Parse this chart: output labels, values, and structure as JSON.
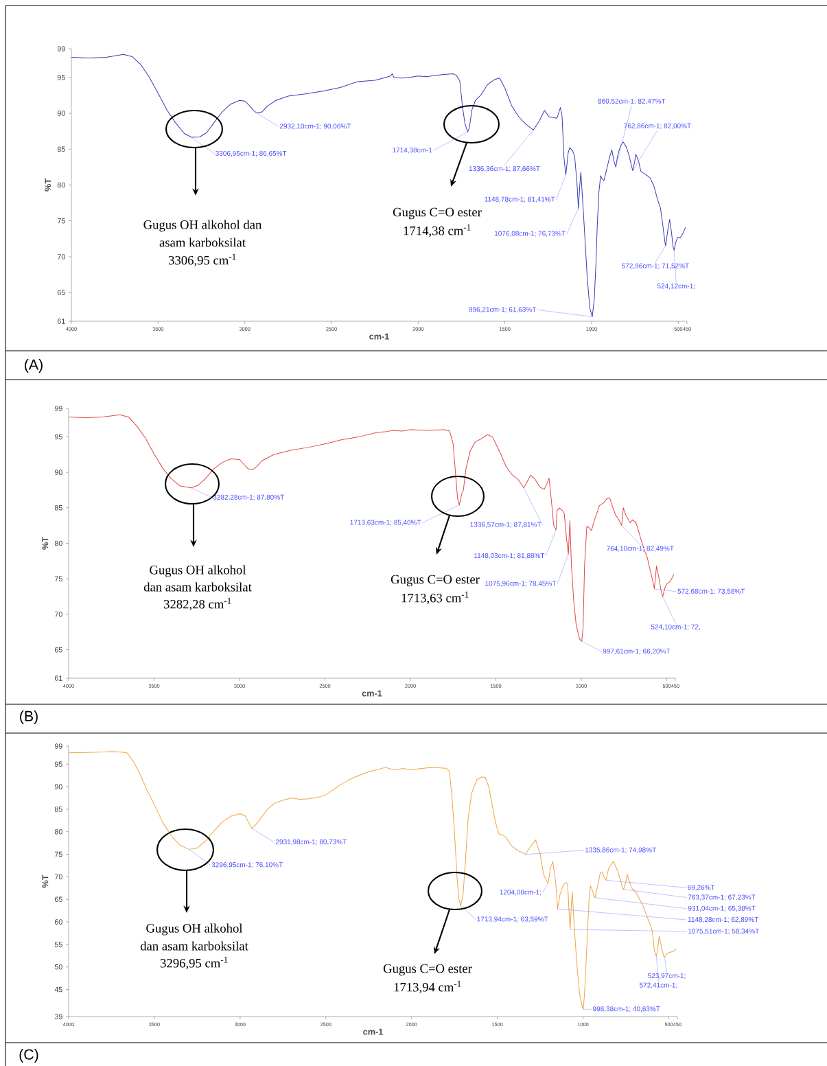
{
  "chart_data": [
    {
      "type": "line",
      "xlabel": "cm-1",
      "ylabel": "%T",
      "xlim": [
        4000,
        450
      ],
      "ylim": [
        61,
        99
      ],
      "xticks": [
        4000,
        3500,
        3000,
        2500,
        2000,
        1500,
        1000,
        500,
        450
      ],
      "yticks": [
        61,
        65,
        70,
        75,
        80,
        85,
        90,
        95,
        99
      ],
      "color": "#3c3cb4",
      "x": [
        4000,
        3900,
        3800,
        3700,
        3650,
        3600,
        3550,
        3500,
        3450,
        3400,
        3350,
        3306.95,
        3260,
        3220,
        3180,
        3130,
        3080,
        3030,
        3000,
        2970,
        2950,
        2932.1,
        2900,
        2870,
        2820,
        2750,
        2650,
        2550,
        2450,
        2350,
        2250,
        2200,
        2160,
        2150,
        2140,
        2100,
        2050,
        2000,
        1950,
        1900,
        1850,
        1800,
        1780,
        1760,
        1745,
        1730,
        1714.38,
        1705,
        1690,
        1670,
        1640,
        1600,
        1560,
        1530,
        1500,
        1460,
        1420,
        1380,
        1336.36,
        1300,
        1272,
        1245,
        1200,
        1180,
        1170,
        1160,
        1148.78,
        1135,
        1126,
        1110,
        1098,
        1085,
        1076.08,
        1068,
        1062,
        1052,
        1042,
        1025,
        1010,
        996.21,
        985,
        975,
        968,
        958,
        948,
        940,
        929,
        910,
        895,
        883,
        873,
        860.52,
        852,
        843,
        830,
        818,
        800,
        785,
        770,
        762.86,
        752,
        745,
        730,
        716,
        690,
        663,
        640,
        620,
        603,
        590,
        577,
        572.96,
        562,
        550,
        540,
        530,
        524.12,
        515,
        504,
        490,
        475,
        458
      ],
      "values": [
        97.8,
        97.7,
        97.8,
        98.2,
        97.9,
        96.8,
        95,
        92.8,
        90.5,
        88.7,
        87.2,
        86.65,
        86.7,
        87.3,
        88.6,
        90.2,
        91.3,
        91.8,
        91.7,
        91,
        90.4,
        90.06,
        90.2,
        91,
        91.8,
        92.4,
        92.7,
        93.1,
        93.6,
        94.4,
        94.6,
        94.9,
        95.2,
        95.5,
        95,
        94.9,
        95,
        95.2,
        95.1,
        95.3,
        95.4,
        95.5,
        95.3,
        94.5,
        91,
        88.5,
        87.4,
        88,
        90.5,
        91.8,
        92.5,
        94,
        94.7,
        94.9,
        93.5,
        91,
        89.5,
        88.5,
        87.66,
        89,
        90.4,
        89.5,
        89.3,
        90.8,
        89.5,
        84,
        81.41,
        84.5,
        85.2,
        84.8,
        84,
        80.5,
        76.73,
        80,
        81.8,
        78,
        74,
        67,
        62.8,
        61.63,
        64,
        69,
        74,
        79,
        81.3,
        80.9,
        80.6,
        82.5,
        84,
        84.9,
        83.5,
        82.47,
        83.8,
        84.7,
        85.6,
        86,
        85.3,
        84.2,
        82.7,
        82,
        83.2,
        84.3,
        83.4,
        81.9,
        81.5,
        81,
        79.8,
        78,
        76.8,
        74.5,
        72,
        71.52,
        73.5,
        75.2,
        73.5,
        71.4,
        70.9,
        72,
        72.7,
        72.6,
        73.2,
        74.1
      ],
      "annotations": [
        {
          "text": "3306,95cm-1; 86,65%T",
          "x": 3306.95,
          "y": 86.65
        },
        {
          "text": "2932,10cm-1; 90,06%T",
          "x": 2932.1,
          "y": 90.06
        },
        {
          "text": "1714,38cm-1",
          "x": 1714.38,
          "y": 87.4
        },
        {
          "text": "1336,36cm-1; 87,66%T",
          "x": 1336.36,
          "y": 87.66
        },
        {
          "text": "1148,78cm-1; 81,41%T",
          "x": 1148.78,
          "y": 81.41
        },
        {
          "text": "1076,08cm-1; 76,73%T",
          "x": 1076.08,
          "y": 76.73
        },
        {
          "text": "996,21cm-1; 61,63%T",
          "x": 996.21,
          "y": 61.63
        },
        {
          "text": "860,52cm-1; 82,47%T",
          "x": 860.52,
          "y": 82.47
        },
        {
          "text": "762,86cm-1; 82,00%T",
          "x": 762.86,
          "y": 82.0
        },
        {
          "text": "572,96cm-1; 71,52%T",
          "x": 572.96,
          "y": 71.52
        },
        {
          "text": "524,12cm-1;",
          "x": 524.12,
          "y": 70.9
        },
        "Gugus OH alkohol dan",
        "asam karboksilat",
        "3306,95 cm$^{-1}$",
        "Gugus C=O ester",
        "1714,38 cm$^{-1}$",
        "(A)"
      ]
    },
    {
      "type": "line",
      "xlabel": "cm-1",
      "ylabel": "%T",
      "xlim": [
        4000,
        450
      ],
      "ylim": [
        61,
        99
      ],
      "xticks": [
        4000,
        3500,
        3000,
        2500,
        2000,
        1500,
        1000,
        500,
        450
      ],
      "yticks": [
        61,
        65,
        70,
        75,
        80,
        85,
        90,
        95,
        99
      ],
      "color": "#e04848",
      "x": [
        4000,
        3900,
        3800,
        3700,
        3650,
        3600,
        3550,
        3500,
        3450,
        3400,
        3350,
        3282.28,
        3240,
        3200,
        3150,
        3100,
        3050,
        3000,
        2970,
        2950,
        2920,
        2900,
        2870,
        2800,
        2700,
        2600,
        2500,
        2400,
        2300,
        2200,
        2150,
        2100,
        2050,
        2000,
        1900,
        1800,
        1770,
        1750,
        1735,
        1724,
        1713.63,
        1700,
        1690,
        1675,
        1650,
        1620,
        1580,
        1550,
        1520,
        1500,
        1470,
        1440,
        1403,
        1370,
        1336.57,
        1320,
        1297,
        1270,
        1242,
        1217,
        1200,
        1189,
        1175,
        1162,
        1148.03,
        1142,
        1128,
        1110,
        1100,
        1088,
        1075.96,
        1067,
        1058,
        1045,
        1030,
        1010,
        997.61,
        990,
        981,
        968,
        955,
        941,
        920,
        894,
        870,
        850,
        834,
        815,
        800,
        785,
        764.1,
        754,
        740,
        714,
        700,
        680,
        650,
        630,
        613,
        600,
        585,
        572.68,
        560,
        545,
        535,
        524.1,
        510,
        499,
        480,
        459
      ],
      "values": [
        97.8,
        97.7,
        97.8,
        98.1,
        97.8,
        96.5,
        94.8,
        92.6,
        90.6,
        89.1,
        88.1,
        87.8,
        88.2,
        89.1,
        90.5,
        91.4,
        91.9,
        91.8,
        91,
        90.5,
        90.4,
        90.8,
        91.6,
        92.5,
        93.1,
        93.5,
        94,
        94.6,
        95,
        95.6,
        95.7,
        95.9,
        95.8,
        96,
        95.9,
        96,
        95.8,
        94,
        89.5,
        86.3,
        85.4,
        87,
        87.5,
        90.5,
        93,
        94.3,
        94.8,
        95.3,
        95,
        94,
        92.5,
        90.8,
        89.6,
        89,
        87.81,
        88.5,
        89.6,
        89,
        87.9,
        87.6,
        88.5,
        89.2,
        86,
        82.6,
        81.88,
        84.6,
        85,
        84.6,
        84.2,
        81,
        78.45,
        83.2,
        77,
        72,
        68.5,
        66.5,
        66.2,
        68,
        76.9,
        82.4,
        82.2,
        81.8,
        83.5,
        85.3,
        85.7,
        86.3,
        86.4,
        85,
        84,
        83.5,
        82.49,
        85,
        84,
        82.9,
        83.3,
        82.9,
        80.5,
        79,
        77.9,
        76.5,
        75,
        73.58,
        76.8,
        75,
        73.5,
        72.5,
        73.8,
        74.3,
        74.6,
        75.6
      ],
      "annotations": [
        {
          "text": "3282,28cm-1; 87,80%T",
          "x": 3282.28,
          "y": 87.8
        },
        {
          "text": "1713,63cm-1; 85,40%T",
          "x": 1713.63,
          "y": 85.4
        },
        {
          "text": "1336,57cm-1; 87,81%T",
          "x": 1336.57,
          "y": 87.81
        },
        {
          "text": "1148,03cm-1; 81,88%T",
          "x": 1148.03,
          "y": 81.88
        },
        {
          "text": "1075,96cm-1; 78,45%T",
          "x": 1075.96,
          "y": 78.45
        },
        {
          "text": "997,61cm-1; 66,20%T",
          "x": 997.61,
          "y": 66.2
        },
        {
          "text": "764,10cm-1; 82,49%T",
          "x": 764.1,
          "y": 82.49
        },
        {
          "text": "572,68cm-1; 73,58%T",
          "x": 572.68,
          "y": 73.58
        },
        {
          "text": "524,10cm-1; 72,",
          "x": 524.1,
          "y": 72.5
        },
        "Gugus OH alkohol",
        "dan asam karboksilat",
        "3282,28 cm$^{-1}$",
        "Gugus C=O ester",
        "1713,63 cm$^{-1}$",
        "(B)"
      ]
    },
    {
      "type": "line",
      "xlabel": "cm-1",
      "ylabel": "%T",
      "xlim": [
        4000,
        450
      ],
      "ylim": [
        39,
        99
      ],
      "xticks": [
        4000,
        3500,
        3000,
        2500,
        2000,
        1500,
        1000,
        500,
        450
      ],
      "yticks": [
        39,
        45,
        50,
        55,
        60,
        65,
        70,
        75,
        80,
        85,
        90,
        95,
        99
      ],
      "color": "#f0a443",
      "x": [
        4000,
        3900,
        3800,
        3750,
        3700,
        3660,
        3620,
        3580,
        3540,
        3500,
        3450,
        3400,
        3350,
        3296.95,
        3250,
        3200,
        3150,
        3100,
        3050,
        3000,
        2970,
        2950,
        2931.98,
        2910,
        2880,
        2840,
        2800,
        2750,
        2700,
        2650,
        2600,
        2550,
        2500,
        2450,
        2400,
        2350,
        2300,
        2250,
        2200,
        2150,
        2130,
        2100,
        2050,
        2000,
        1950,
        1900,
        1850,
        1800,
        1780,
        1765,
        1750,
        1735,
        1724,
        1713.94,
        1700,
        1685,
        1670,
        1650,
        1620,
        1590,
        1570,
        1550,
        1530,
        1510,
        1490,
        1470,
        1450,
        1420,
        1380,
        1360,
        1335.86,
        1310,
        1277,
        1250,
        1230,
        1204.08,
        1190,
        1177,
        1160,
        1148.28,
        1135,
        1117,
        1100,
        1090,
        1083,
        1075.51,
        1068,
        1063,
        1050,
        1035,
        1020,
        1003,
        998.38,
        990,
        975,
        965,
        956,
        946,
        931.04,
        915,
        900,
        890,
        875,
        866,
        850,
        823,
        800,
        780,
        770,
        763.37,
        750,
        743,
        730,
        716,
        690,
        670,
        649,
        625,
        605,
        596,
        585,
        576,
        572.41,
        565,
        556,
        540,
        529,
        523.97,
        510,
        489,
        470,
        456
      ],
      "values": [
        97.5,
        97.6,
        97.7,
        97.8,
        97.7,
        97.5,
        95.5,
        92.5,
        89,
        86,
        82,
        79,
        77,
        76.1,
        76.4,
        78,
        80.3,
        82.3,
        83.5,
        84,
        83.5,
        82,
        80.73,
        81.5,
        83,
        85,
        86.3,
        87,
        87.5,
        87.2,
        87.3,
        87.6,
        88.2,
        89.5,
        90.8,
        91.8,
        92.6,
        93.3,
        93.8,
        94.3,
        94,
        93.8,
        94,
        93.8,
        94,
        94.2,
        94.2,
        94.1,
        93.5,
        88,
        80,
        70,
        65,
        63.59,
        66,
        74,
        83,
        88.5,
        91.5,
        92.2,
        92,
        90,
        86,
        82,
        79.5,
        79.3,
        78.8,
        77,
        75.8,
        75.5,
        74.98,
        76.5,
        78.2,
        75,
        70.5,
        68.5,
        72,
        73.4,
        69,
        62.89,
        66,
        68,
        68.8,
        68.5,
        63,
        58.34,
        64,
        66.6,
        58,
        50,
        44,
        41,
        40.63,
        45,
        57,
        65,
        68,
        67,
        65.38,
        68,
        70.8,
        71.1,
        69.8,
        69.26,
        72,
        73.4,
        71.5,
        69,
        67.5,
        67.23,
        69,
        70.6,
        69,
        67.5,
        66.5,
        65,
        63.4,
        61,
        59,
        57.9,
        54,
        52.5,
        52.4,
        54,
        56.8,
        54,
        52.3,
        52.2,
        53,
        53.3,
        53.5,
        54.1
      ],
      "annotations": [
        {
          "text": "3296,95cm-1; 76,10%T",
          "x": 3296.95,
          "y": 76.1
        },
        {
          "text": "2931,98cm-1; 80,73%T",
          "x": 2931.98,
          "y": 80.73
        },
        {
          "text": "1713,94cm-1; 63,59%T",
          "x": 1713.94,
          "y": 63.59
        },
        {
          "text": "1335,86cm-1; 74,98%T",
          "x": 1335.86,
          "y": 74.98
        },
        {
          "text": "1204,08cm-1;",
          "x": 1204.08,
          "y": 68.5
        },
        {
          "text": "69,26%T",
          "x": 866,
          "y": 69.26
        },
        {
          "text": "763,37cm-1; 67,23%T",
          "x": 763.37,
          "y": 67.23
        },
        {
          "text": "931,04cm-1; 65,38%T",
          "x": 931.04,
          "y": 65.38
        },
        {
          "text": "1148,28cm-1; 62,89%T",
          "x": 1148.28,
          "y": 62.89
        },
        {
          "text": "1075,51cm-1; 58,34%T",
          "x": 1075.51,
          "y": 58.34
        },
        {
          "text": "998,38cm-1; 40,63%T",
          "x": 998.38,
          "y": 40.63
        },
        {
          "text": "572,41cm-1;",
          "x": 572.41,
          "y": 52.4
        },
        {
          "text": "523,97cm-1;",
          "x": 523.97,
          "y": 52.2
        },
        "Gugus OH alkohol",
        "dan asam karboksilat",
        "3296,95 cm$^{-1}$",
        "Gugus C=O ester",
        "1713,94 cm$^{-1}$",
        "(C)"
      ]
    }
  ]
}
